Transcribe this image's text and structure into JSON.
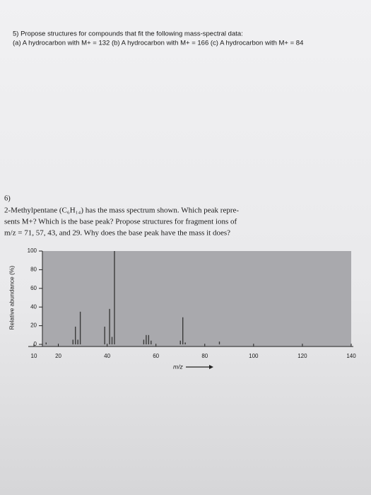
{
  "problem5": {
    "prompt": "5) Propose structures for compounds that fit the following mass-spectral data:",
    "parts": "(a) A hydrocarbon with M+ = 132 (b) A hydrocarbon with M+ = 166 (c) A hydrocarbon with M+ = 84"
  },
  "problem6": {
    "number": "6)",
    "lines": [
      "2-Methylpentane (C₆H₁₄) has the mass spectrum shown. Which peak repre-",
      "sents M+? Which is the base peak? Propose structures for fragment ions of",
      "m/z = 71, 57, 43, and 29. Why does the base peak have the mass it does?"
    ]
  },
  "chart_data": {
    "type": "stem",
    "x": [
      15,
      26,
      27,
      28,
      29,
      39,
      41,
      42,
      43,
      55,
      56,
      57,
      58,
      70,
      71,
      72,
      86
    ],
    "values": [
      2,
      5,
      19,
      5,
      35,
      19,
      38,
      8,
      100,
      5,
      10,
      10,
      4,
      4,
      29,
      2,
      3
    ],
    "color": "#3a3a3a",
    "xlim": [
      10,
      140
    ],
    "xticks": [
      10,
      20,
      40,
      60,
      80,
      100,
      120,
      140
    ],
    "ylim": [
      0,
      100
    ],
    "yticks": [
      0,
      20,
      40,
      60,
      80,
      100
    ],
    "xlabel": "m/z",
    "ylabel": "Relative abundance (%)"
  }
}
